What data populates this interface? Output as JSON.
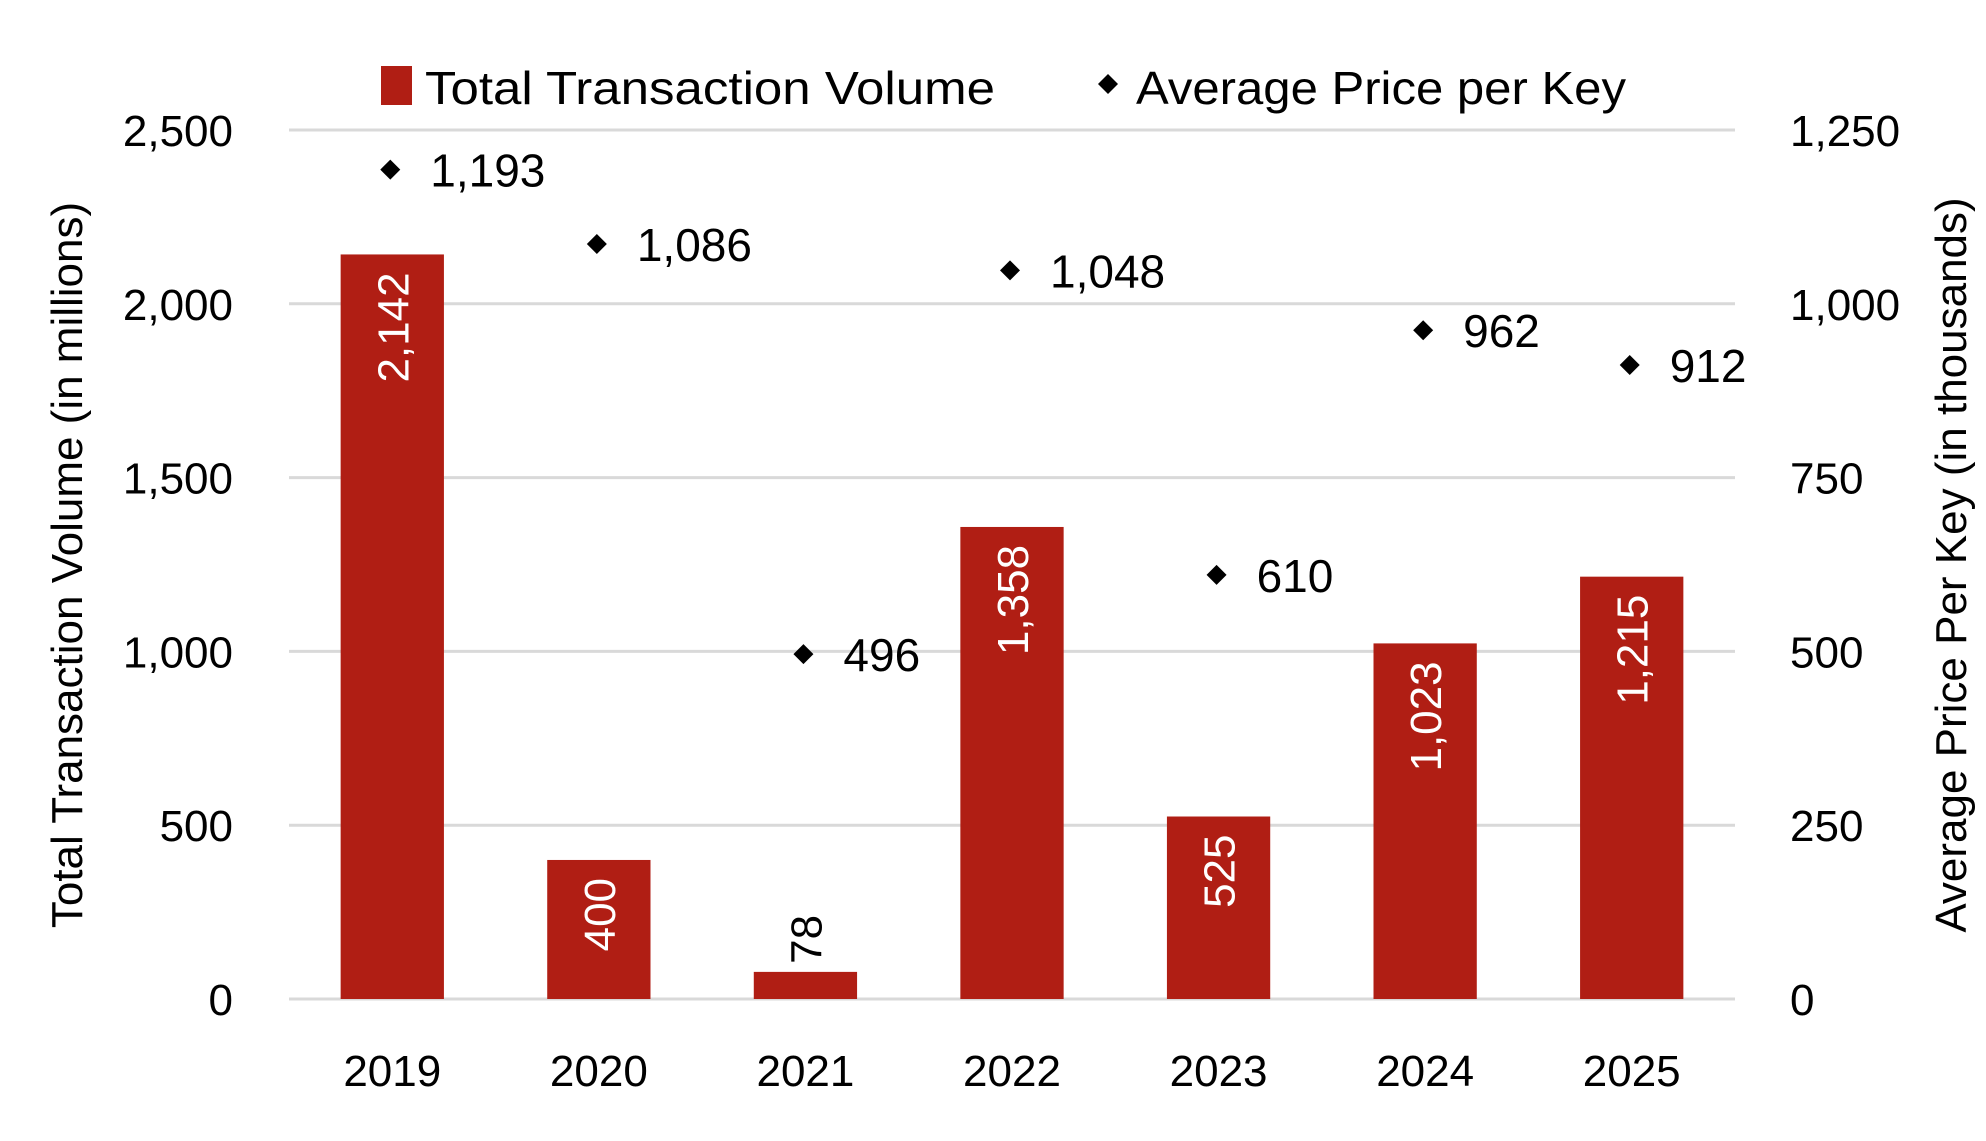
{
  "chart_data": {
    "type": "bar",
    "title": "",
    "categories": [
      "2019",
      "2020",
      "2021",
      "2022",
      "2023",
      "2024",
      "2025"
    ],
    "series": [
      {
        "name": "Total Transaction Volume",
        "type": "bar",
        "axis": "left",
        "color": "#B01E14",
        "values": [
          2142,
          400,
          78,
          1358,
          525,
          1023,
          1215
        ],
        "labels": [
          "2,142",
          "400",
          "78",
          "1,358",
          "525",
          "1,023",
          "1,215"
        ]
      },
      {
        "name": "Average Price per Key",
        "type": "scatter",
        "marker": "diamond",
        "axis": "right",
        "color": "#000000",
        "values": [
          1193,
          1086,
          496,
          1048,
          610,
          962,
          912
        ],
        "labels": [
          "1,193",
          "1,086",
          "496",
          "1,048",
          "610",
          "962",
          "912"
        ]
      }
    ],
    "xlabel": "",
    "ylabel": "Total Transaction Volume (in millions)",
    "y2label": "Average Price Per Key (in thousands)",
    "ylim": [
      0,
      2500
    ],
    "y2lim": [
      0,
      1250
    ],
    "yticks": [
      0,
      500,
      1000,
      1500,
      2000,
      2500
    ],
    "yticklabels": [
      "0",
      "500",
      "1,000",
      "1,500",
      "2,000",
      "2,500"
    ],
    "y2ticks": [
      0,
      250,
      500,
      750,
      1000,
      1250
    ],
    "y2ticklabels": [
      "0",
      "250",
      "500",
      "750",
      "1,000",
      "1,250"
    ],
    "grid": true,
    "legend": {
      "position": "top",
      "entries": [
        "Total Transaction Volume",
        "Average Price per Key"
      ]
    }
  }
}
